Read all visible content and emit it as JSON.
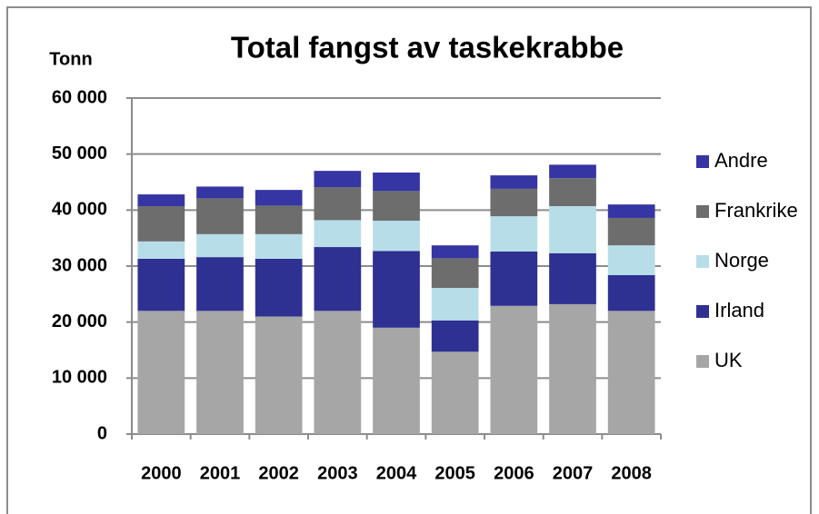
{
  "chart_data": {
    "type": "stacked_bar",
    "title": "Total fangst av taskekrabbe",
    "y_axis_label": "Tonn",
    "categories": [
      "2000",
      "2001",
      "2002",
      "2003",
      "2004",
      "2005",
      "2006",
      "2007",
      "2008"
    ],
    "series": [
      {
        "name": "UK",
        "color": "#a6a6a6",
        "values": [
          22000,
          22000,
          21000,
          22000,
          19000,
          14700,
          22900,
          23200,
          22000
        ]
      },
      {
        "name": "Irland",
        "color": "#2e3192",
        "values": [
          9300,
          9600,
          10300,
          11400,
          13700,
          5600,
          9700,
          9100,
          6400
        ]
      },
      {
        "name": "Norge",
        "color": "#b7dee8",
        "values": [
          3100,
          4100,
          4400,
          4800,
          5400,
          5800,
          6300,
          8400,
          5300
        ]
      },
      {
        "name": "Frankrike",
        "color": "#6d6d6d",
        "values": [
          6300,
          6400,
          5100,
          5900,
          5300,
          5300,
          4900,
          5000,
          4900
        ]
      },
      {
        "name": "Andre",
        "color": "#3535a3",
        "values": [
          2100,
          2100,
          2800,
          2900,
          3300,
          2300,
          2400,
          2400,
          2400
        ]
      }
    ],
    "ylim": [
      0,
      60000
    ],
    "yticks": [
      0,
      {
        "value": 10000,
        "label": "10 000"
      },
      {
        "value": 20000,
        "label": "20 000"
      },
      {
        "value": 30000,
        "label": "30 000"
      },
      {
        "value": 40000,
        "label": "40 000"
      },
      {
        "value": 50000,
        "label": "50 000"
      },
      {
        "value": 60000,
        "label": "60 000"
      }
    ],
    "grid": true,
    "legend": "right"
  }
}
